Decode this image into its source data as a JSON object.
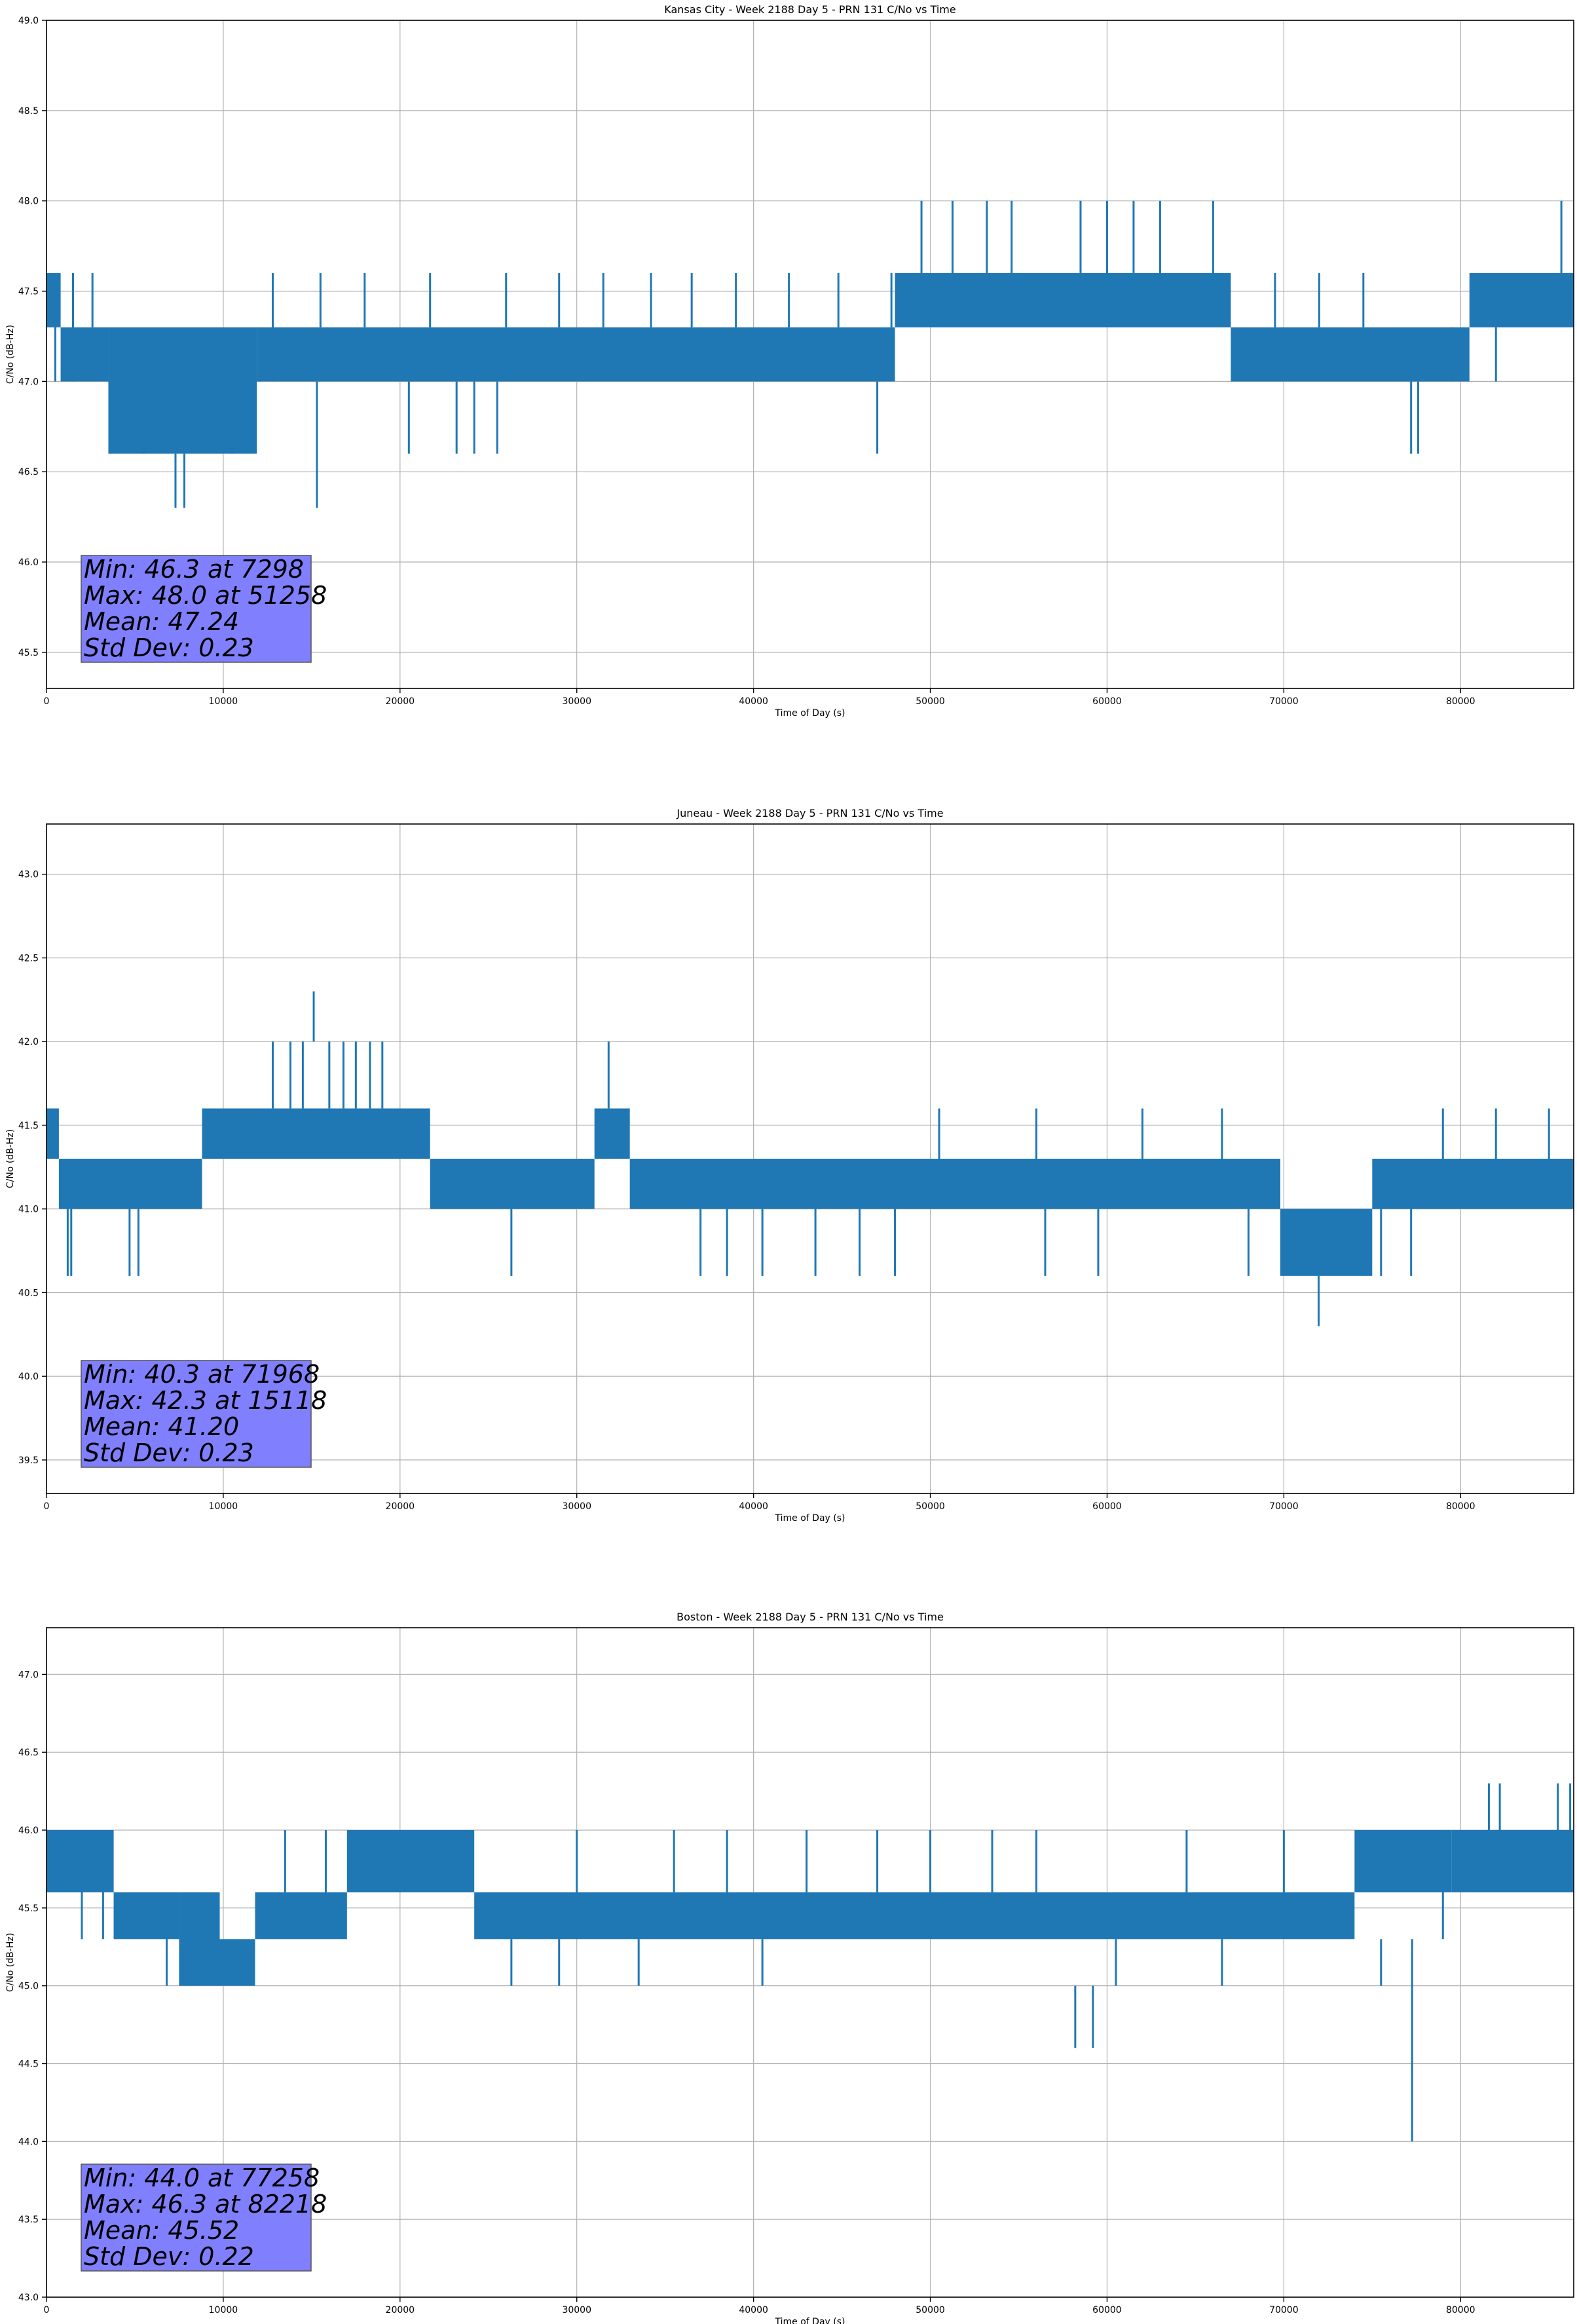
{
  "figure": {
    "background": "#ffffff",
    "line_color": "#1f77b4",
    "stats_box_color": "#8080ff"
  },
  "chart_data": [
    {
      "type": "line",
      "title": "Kansas City - Week 2188 Day 5 - PRN 131 C/No vs Time",
      "xlabel": "Time of Day (s)",
      "ylabel": "C/No (dB-Hz)",
      "xlim": [
        0,
        86400
      ],
      "ylim": [
        45.3,
        49.0
      ],
      "xticks": [
        0,
        10000,
        20000,
        30000,
        40000,
        50000,
        60000,
        70000,
        80000
      ],
      "yticks": [
        "45.5",
        "46.0",
        "46.5",
        "47.0",
        "47.5",
        "48.0",
        "48.5",
        "49.0"
      ],
      "grid": true,
      "series": [
        {
          "color": "#1f77b4",
          "bands": [
            {
              "x0": 0,
              "x1": 800,
              "low": 47.3,
              "high": 47.6
            },
            {
              "x0": 800,
              "x1": 3500,
              "low": 47.0,
              "high": 47.3
            },
            {
              "x0": 3500,
              "x1": 11900,
              "low": 46.6,
              "high": 47.3
            },
            {
              "x0": 11900,
              "x1": 48000,
              "low": 47.0,
              "high": 47.3
            },
            {
              "x0": 48000,
              "x1": 67000,
              "low": 47.3,
              "high": 47.6
            },
            {
              "x0": 67000,
              "x1": 80500,
              "low": 47.0,
              "high": 47.3
            },
            {
              "x0": 80500,
              "x1": 86400,
              "low": 47.3,
              "high": 47.6
            }
          ],
          "spikes": [
            [
              500,
              47.0,
              47.6
            ],
            [
              1500,
              47.0,
              47.6
            ],
            [
              2600,
              47.3,
              47.6
            ],
            [
              3600,
              46.6,
              47.0
            ],
            [
              5500,
              46.6,
              47.0
            ],
            [
              7298,
              46.3,
              46.6
            ],
            [
              7800,
              46.3,
              46.6
            ],
            [
              10500,
              46.6,
              47.0
            ],
            [
              12800,
              47.0,
              47.6
            ],
            [
              15300,
              46.3,
              47.0
            ],
            [
              15500,
              47.3,
              47.6
            ],
            [
              18000,
              47.3,
              47.6
            ],
            [
              20500,
              46.6,
              47.0
            ],
            [
              21700,
              47.3,
              47.6
            ],
            [
              23200,
              46.6,
              47.0
            ],
            [
              24200,
              46.6,
              47.0
            ],
            [
              25500,
              46.6,
              47.0
            ],
            [
              26000,
              47.3,
              47.6
            ],
            [
              29000,
              47.3,
              47.6
            ],
            [
              31500,
              47.3,
              47.6
            ],
            [
              34200,
              47.3,
              47.6
            ],
            [
              36500,
              47.3,
              47.6
            ],
            [
              39000,
              47.3,
              47.6
            ],
            [
              42000,
              47.3,
              47.6
            ],
            [
              44800,
              47.3,
              47.6
            ],
            [
              47000,
              46.6,
              47.0
            ],
            [
              47800,
              47.3,
              47.6
            ],
            [
              49500,
              47.6,
              48.0
            ],
            [
              51258,
              47.6,
              48.0
            ],
            [
              53200,
              47.6,
              48.0
            ],
            [
              54600,
              47.6,
              48.0
            ],
            [
              58500,
              47.6,
              48.0
            ],
            [
              60000,
              47.6,
              48.0
            ],
            [
              61500,
              47.6,
              48.0
            ],
            [
              63000,
              47.6,
              48.0
            ],
            [
              66000,
              47.6,
              48.0
            ],
            [
              69500,
              47.3,
              47.6
            ],
            [
              72000,
              47.3,
              47.6
            ],
            [
              74500,
              47.3,
              47.6
            ],
            [
              77200,
              46.6,
              47.0
            ],
            [
              77600,
              46.6,
              47.0
            ],
            [
              79500,
              47.0,
              47.3
            ],
            [
              82000,
              47.0,
              47.3
            ],
            [
              85700,
              47.6,
              48.0
            ]
          ]
        }
      ],
      "stats": [
        "Min: 46.3 at 7298",
        "Max: 48.0 at 51258",
        "Mean: 47.24",
        "Std Dev: 0.23"
      ],
      "stats_box_color": "#8080ff",
      "stats_placement": "lower-left"
    },
    {
      "type": "line",
      "title": "Juneau - Week 2188 Day 5 - PRN 131 C/No vs Time",
      "xlabel": "Time of Day (s)",
      "ylabel": "C/No (dB-Hz)",
      "xlim": [
        0,
        86400
      ],
      "ylim": [
        39.3,
        43.3
      ],
      "xticks": [
        0,
        10000,
        20000,
        30000,
        40000,
        50000,
        60000,
        70000,
        80000
      ],
      "yticks": [
        "39.5",
        "40.0",
        "40.5",
        "41.0",
        "41.5",
        "42.0",
        "42.5",
        "43.0"
      ],
      "grid": true,
      "series": [
        {
          "color": "#1f77b4",
          "bands": [
            {
              "x0": 0,
              "x1": 700,
              "low": 41.3,
              "high": 41.6
            },
            {
              "x0": 700,
              "x1": 8800,
              "low": 41.0,
              "high": 41.3
            },
            {
              "x0": 8800,
              "x1": 21700,
              "low": 41.3,
              "high": 41.6
            },
            {
              "x0": 21700,
              "x1": 31000,
              "low": 41.0,
              "high": 41.3
            },
            {
              "x0": 31000,
              "x1": 33000,
              "low": 41.3,
              "high": 41.6
            },
            {
              "x0": 33000,
              "x1": 69800,
              "low": 41.0,
              "high": 41.3
            },
            {
              "x0": 69800,
              "x1": 75000,
              "low": 40.6,
              "high": 41.0
            },
            {
              "x0": 75000,
              "x1": 86400,
              "low": 41.0,
              "high": 41.3
            }
          ],
          "spikes": [
            [
              1200,
              40.6,
              41.0
            ],
            [
              1400,
              40.6,
              41.0
            ],
            [
              4700,
              40.6,
              41.0
            ],
            [
              5200,
              40.6,
              41.0
            ],
            [
              12800,
              41.6,
              42.0
            ],
            [
              13800,
              41.6,
              42.0
            ],
            [
              14500,
              41.6,
              42.0
            ],
            [
              15118,
              42.0,
              42.3
            ],
            [
              16000,
              41.6,
              42.0
            ],
            [
              16800,
              41.6,
              42.0
            ],
            [
              17500,
              41.6,
              42.0
            ],
            [
              18300,
              41.6,
              42.0
            ],
            [
              19000,
              41.6,
              42.0
            ],
            [
              26300,
              40.6,
              41.0
            ],
            [
              31800,
              41.6,
              42.0
            ],
            [
              37000,
              40.6,
              41.0
            ],
            [
              38500,
              40.6,
              41.0
            ],
            [
              40500,
              40.6,
              41.0
            ],
            [
              43500,
              40.6,
              41.0
            ],
            [
              46000,
              40.6,
              41.0
            ],
            [
              48000,
              40.6,
              41.0
            ],
            [
              50500,
              41.3,
              41.6
            ],
            [
              56000,
              41.3,
              41.6
            ],
            [
              56500,
              40.6,
              41.0
            ],
            [
              59500,
              40.6,
              41.0
            ],
            [
              62000,
              41.3,
              41.6
            ],
            [
              66500,
              41.3,
              41.6
            ],
            [
              68000,
              40.6,
              41.0
            ],
            [
              71968,
              40.3,
              40.6
            ],
            [
              75500,
              40.6,
              41.0
            ],
            [
              77200,
              40.6,
              41.0
            ],
            [
              79000,
              41.3,
              41.6
            ],
            [
              82000,
              41.3,
              41.6
            ],
            [
              85000,
              41.3,
              41.6
            ]
          ]
        }
      ],
      "stats": [
        "Min: 40.3 at 71968",
        "Max: 42.3 at 15118",
        "Mean: 41.20",
        "Std Dev: 0.23"
      ],
      "stats_box_color": "#8080ff",
      "stats_placement": "lower-left"
    },
    {
      "type": "line",
      "title": "Boston - Week 2188 Day 5 - PRN 131 C/No vs Time",
      "xlabel": "Time of Day (s)",
      "ylabel": "C/No (dB-Hz)",
      "xlim": [
        0,
        86400
      ],
      "ylim": [
        43.0,
        47.3
      ],
      "xticks": [
        0,
        10000,
        20000,
        30000,
        40000,
        50000,
        60000,
        70000,
        80000
      ],
      "yticks": [
        "43.0",
        "43.5",
        "44.0",
        "44.5",
        "45.0",
        "45.5",
        "46.0",
        "46.5",
        "47.0"
      ],
      "grid": true,
      "series": [
        {
          "color": "#1f77b4",
          "bands": [
            {
              "x0": 0,
              "x1": 3800,
              "low": 45.6,
              "high": 46.0
            },
            {
              "x0": 3800,
              "x1": 7500,
              "low": 45.3,
              "high": 45.6
            },
            {
              "x0": 7500,
              "x1": 9800,
              "low": 45.0,
              "high": 45.6
            },
            {
              "x0": 9800,
              "x1": 11800,
              "low": 45.0,
              "high": 45.3
            },
            {
              "x0": 11800,
              "x1": 17000,
              "low": 45.3,
              "high": 45.6
            },
            {
              "x0": 17000,
              "x1": 24200,
              "low": 45.6,
              "high": 46.0
            },
            {
              "x0": 24200,
              "x1": 74000,
              "low": 45.3,
              "high": 45.6
            },
            {
              "x0": 74000,
              "x1": 79500,
              "low": 45.6,
              "high": 46.0
            },
            {
              "x0": 79500,
              "x1": 86400,
              "low": 45.6,
              "high": 46.0
            }
          ],
          "spikes": [
            [
              2000,
              45.3,
              45.6
            ],
            [
              3200,
              45.3,
              45.6
            ],
            [
              6800,
              45.0,
              45.3
            ],
            [
              8200,
              45.0,
              45.3
            ],
            [
              13500,
              45.6,
              46.0
            ],
            [
              15800,
              45.6,
              46.0
            ],
            [
              26300,
              45.0,
              45.3
            ],
            [
              29000,
              45.0,
              45.3
            ],
            [
              30000,
              45.6,
              46.0
            ],
            [
              33500,
              45.0,
              45.3
            ],
            [
              35500,
              45.6,
              46.0
            ],
            [
              38500,
              45.6,
              46.0
            ],
            [
              40500,
              45.0,
              45.3
            ],
            [
              43000,
              45.6,
              46.0
            ],
            [
              47000,
              45.6,
              46.0
            ],
            [
              50000,
              45.6,
              46.0
            ],
            [
              53500,
              45.6,
              46.0
            ],
            [
              56000,
              45.6,
              46.0
            ],
            [
              58200,
              44.6,
              45.0
            ],
            [
              59200,
              44.6,
              45.0
            ],
            [
              60500,
              45.0,
              45.3
            ],
            [
              64500,
              45.6,
              46.0
            ],
            [
              66500,
              45.0,
              45.3
            ],
            [
              70000,
              45.6,
              46.0
            ],
            [
              75500,
              45.0,
              45.3
            ],
            [
              77258,
              44.0,
              45.3
            ],
            [
              79000,
              45.3,
              45.6
            ],
            [
              81600,
              46.0,
              46.3
            ],
            [
              82218,
              46.0,
              46.3
            ],
            [
              85500,
              46.0,
              46.3
            ],
            [
              86200,
              46.0,
              46.3
            ]
          ]
        }
      ],
      "stats": [
        "Min: 44.0 at 77258",
        "Max: 46.3 at 82218",
        "Mean: 45.52",
        "Std Dev: 0.22"
      ],
      "stats_box_color": "#8080ff",
      "stats_placement": "lower-left"
    }
  ]
}
